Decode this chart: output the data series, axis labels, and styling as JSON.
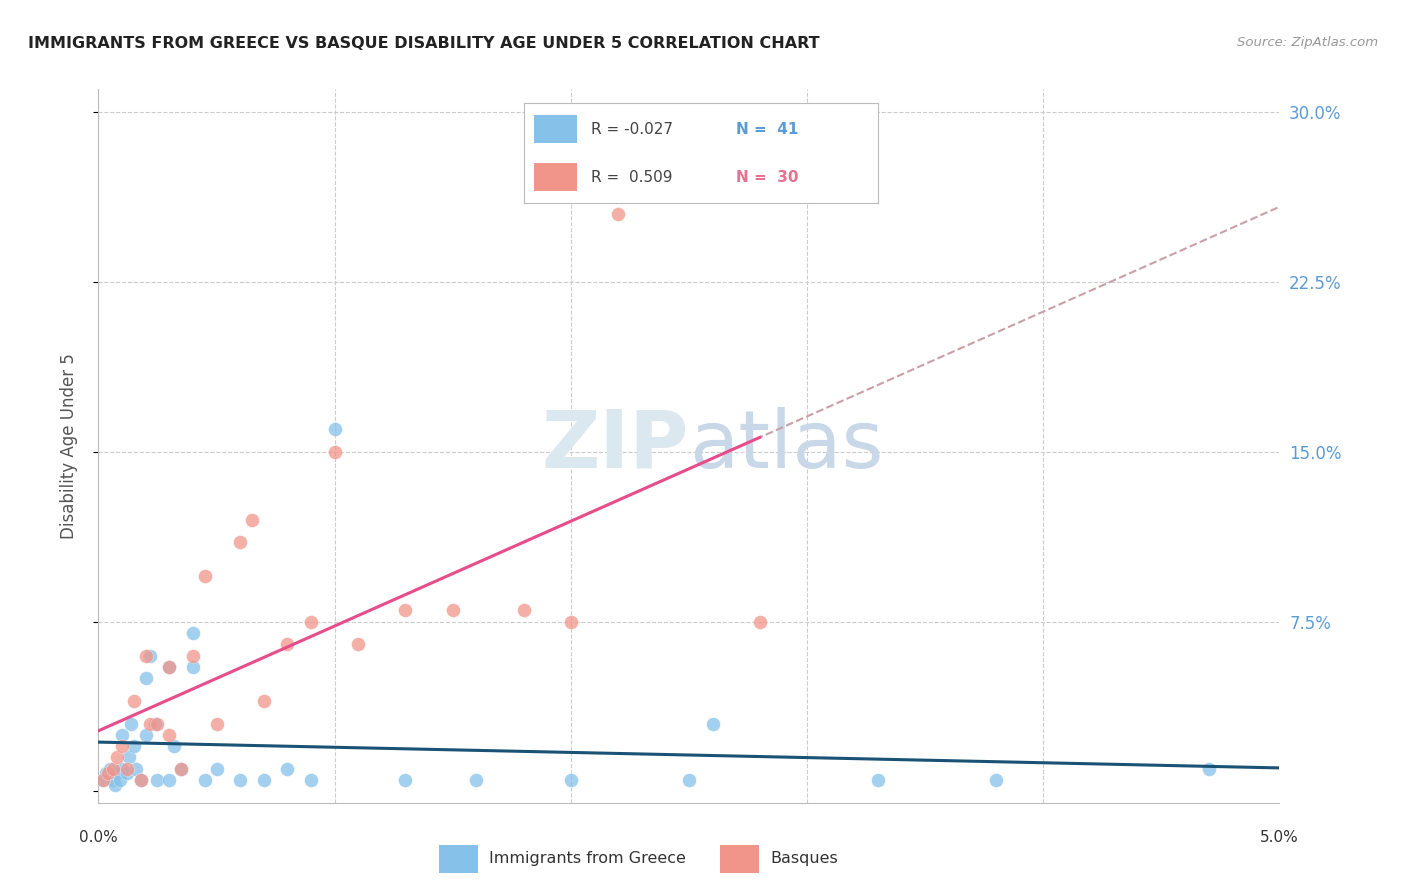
{
  "title": "IMMIGRANTS FROM GREECE VS BASQUE DISABILITY AGE UNDER 5 CORRELATION CHART",
  "source": "Source: ZipAtlas.com",
  "ylabel": "Disability Age Under 5",
  "yticks": [
    0.0,
    0.075,
    0.15,
    0.225,
    0.3
  ],
  "ytick_labels": [
    "",
    "7.5%",
    "15.0%",
    "22.5%",
    "30.0%"
  ],
  "xlim": [
    0.0,
    0.05
  ],
  "ylim": [
    -0.005,
    0.31
  ],
  "color_blue": "#85c1e9",
  "color_pink": "#f1948a",
  "color_blue_line": "#1a5276",
  "color_pink_solid": "#e74c8b",
  "color_pink_dashed": "#c9a0a8",
  "watermark_color": "#dce8f0",
  "greece_x": [
    0.0002,
    0.0003,
    0.0005,
    0.0006,
    0.0007,
    0.0008,
    0.0009,
    0.001,
    0.001,
    0.0012,
    0.0013,
    0.0014,
    0.0015,
    0.0016,
    0.0018,
    0.002,
    0.002,
    0.0022,
    0.0024,
    0.0025,
    0.003,
    0.003,
    0.0032,
    0.0035,
    0.004,
    0.004,
    0.0045,
    0.005,
    0.006,
    0.007,
    0.008,
    0.009,
    0.01,
    0.013,
    0.016,
    0.02,
    0.025,
    0.026,
    0.033,
    0.038,
    0.047
  ],
  "greece_y": [
    0.005,
    0.008,
    0.01,
    0.005,
    0.003,
    0.008,
    0.005,
    0.025,
    0.01,
    0.008,
    0.015,
    0.03,
    0.02,
    0.01,
    0.005,
    0.025,
    0.05,
    0.06,
    0.03,
    0.005,
    0.005,
    0.055,
    0.02,
    0.01,
    0.055,
    0.07,
    0.005,
    0.01,
    0.005,
    0.005,
    0.01,
    0.005,
    0.16,
    0.005,
    0.005,
    0.005,
    0.005,
    0.03,
    0.005,
    0.005,
    0.01
  ],
  "basque_x": [
    0.0002,
    0.0004,
    0.0006,
    0.0008,
    0.001,
    0.0012,
    0.0015,
    0.0018,
    0.002,
    0.0022,
    0.0025,
    0.003,
    0.003,
    0.0035,
    0.004,
    0.0045,
    0.005,
    0.006,
    0.0065,
    0.007,
    0.008,
    0.009,
    0.01,
    0.011,
    0.013,
    0.015,
    0.018,
    0.02,
    0.022,
    0.028
  ],
  "basque_y": [
    0.005,
    0.008,
    0.01,
    0.015,
    0.02,
    0.01,
    0.04,
    0.005,
    0.06,
    0.03,
    0.03,
    0.025,
    0.055,
    0.01,
    0.06,
    0.095,
    0.03,
    0.11,
    0.12,
    0.04,
    0.065,
    0.075,
    0.15,
    0.065,
    0.08,
    0.08,
    0.08,
    0.075,
    0.255,
    0.075
  ]
}
